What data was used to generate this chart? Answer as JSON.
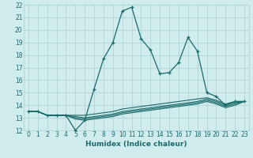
{
  "xlabel": "Humidex (Indice chaleur)",
  "background_color": "#d0ecec",
  "grid_color": "#b0d4d4",
  "line_color": "#1a6b6b",
  "xlim": [
    -0.5,
    23.5
  ],
  "ylim": [
    12,
    22
  ],
  "xticks": [
    0,
    1,
    2,
    3,
    4,
    5,
    6,
    7,
    8,
    9,
    10,
    11,
    12,
    13,
    14,
    15,
    16,
    17,
    18,
    19,
    20,
    21,
    22,
    23
  ],
  "yticks": [
    12,
    13,
    14,
    15,
    16,
    17,
    18,
    19,
    20,
    21,
    22
  ],
  "main_series": [
    13.5,
    13.5,
    13.2,
    13.2,
    13.2,
    12.0,
    12.8,
    15.3,
    17.7,
    19.0,
    21.5,
    21.8,
    19.3,
    18.4,
    16.5,
    16.6,
    17.4,
    19.4,
    18.3,
    15.0,
    14.7,
    14.0,
    14.3,
    14.3
  ],
  "ref_series": [
    [
      13.5,
      13.5,
      13.2,
      13.2,
      13.2,
      13.2,
      13.2,
      13.3,
      13.4,
      13.5,
      13.7,
      13.8,
      13.9,
      14.0,
      14.1,
      14.2,
      14.3,
      14.4,
      14.5,
      14.6,
      14.4,
      14.1,
      14.3,
      14.3
    ],
    [
      13.5,
      13.5,
      13.2,
      13.2,
      13.2,
      13.1,
      13.0,
      13.1,
      13.2,
      13.3,
      13.5,
      13.6,
      13.7,
      13.8,
      13.9,
      14.0,
      14.1,
      14.2,
      14.3,
      14.5,
      14.3,
      14.0,
      14.2,
      14.3
    ],
    [
      13.5,
      13.5,
      13.2,
      13.2,
      13.2,
      13.0,
      12.9,
      13.0,
      13.1,
      13.2,
      13.4,
      13.5,
      13.6,
      13.7,
      13.8,
      13.9,
      14.0,
      14.1,
      14.2,
      14.4,
      14.2,
      13.9,
      14.1,
      14.3
    ],
    [
      13.5,
      13.5,
      13.2,
      13.2,
      13.2,
      12.9,
      12.8,
      12.9,
      13.0,
      13.1,
      13.3,
      13.4,
      13.5,
      13.6,
      13.7,
      13.8,
      13.9,
      14.0,
      14.1,
      14.3,
      14.1,
      13.8,
      14.0,
      14.3
    ]
  ],
  "tick_fontsize": 5.5,
  "xlabel_fontsize": 6.5
}
